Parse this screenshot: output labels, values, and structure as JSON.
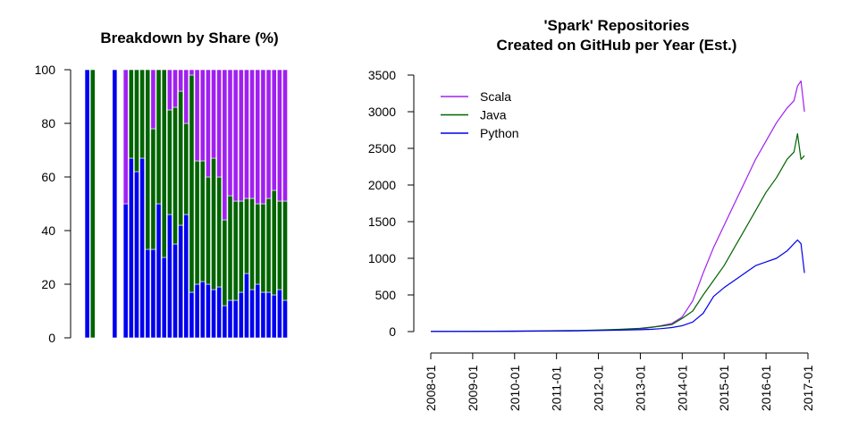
{
  "chart_data": [
    {
      "type": "bar",
      "stacked": true,
      "title": "Breakdown by Share (%)",
      "ylim": [
        0,
        100
      ],
      "yticks": [
        "0",
        "20",
        "40",
        "60",
        "80",
        "100"
      ],
      "colors": {
        "python": "#0000ee",
        "java": "#006400",
        "scala": "#a020f0"
      },
      "series": [
        {
          "name": "Python",
          "values": [
            100,
            0,
            null,
            0,
            null,
            100,
            null,
            50,
            67,
            62,
            67,
            33,
            33,
            50,
            30,
            46,
            35,
            42,
            46,
            17,
            20,
            21,
            20,
            18,
            19,
            12,
            14,
            14,
            17,
            24,
            18,
            20,
            17,
            17,
            16,
            18,
            14
          ]
        },
        {
          "name": "Java",
          "values": [
            0,
            100,
            null,
            0,
            null,
            0,
            null,
            0,
            33,
            38,
            33,
            67,
            45,
            50,
            70,
            39,
            51,
            50,
            34,
            81,
            46,
            45,
            40,
            49,
            41,
            32,
            39,
            37,
            34,
            28,
            34,
            30,
            33,
            35,
            39,
            33,
            37
          ]
        },
        {
          "name": "Scala",
          "values": [
            0,
            0,
            null,
            0,
            null,
            0,
            null,
            50,
            0,
            0,
            0,
            0,
            22,
            0,
            0,
            15,
            14,
            8,
            20,
            2,
            34,
            34,
            40,
            33,
            40,
            56,
            47,
            49,
            49,
            48,
            48,
            50,
            50,
            48,
            45,
            49,
            49
          ]
        }
      ]
    },
    {
      "type": "line",
      "title_lines": [
        "'Spark' Repositories",
        "Created on GitHub per Year (Est.)"
      ],
      "ylim": [
        0,
        3500
      ],
      "yticks": [
        "0",
        "500",
        "1000",
        "1500",
        "2000",
        "2500",
        "3000",
        "3500"
      ],
      "xticks": [
        "2008-01",
        "2009-01",
        "2010-01",
        "2011-01",
        "2012-01",
        "2013-01",
        "2014-01",
        "2015-01",
        "2016-01",
        "2017-01"
      ],
      "legend_position": "top-left",
      "x": [
        "2008-01",
        "2008-07",
        "2009-01",
        "2009-07",
        "2010-01",
        "2010-07",
        "2011-01",
        "2011-07",
        "2012-01",
        "2012-07",
        "2013-01",
        "2013-04",
        "2013-07",
        "2013-10",
        "2014-01",
        "2014-04",
        "2014-07",
        "2014-10",
        "2015-01",
        "2015-04",
        "2015-07",
        "2015-10",
        "2016-01",
        "2016-04",
        "2016-07",
        "2016-09",
        "2016-10",
        "2016-11",
        "2016-12"
      ],
      "series": [
        {
          "name": "Scala",
          "color": "#a020f0",
          "values": [
            2,
            3,
            4,
            5,
            6,
            8,
            10,
            12,
            18,
            25,
            35,
            55,
            80,
            110,
            200,
            420,
            800,
            1150,
            1450,
            1750,
            2050,
            2350,
            2600,
            2850,
            3050,
            3150,
            3350,
            3420,
            3000
          ]
        },
        {
          "name": "Java",
          "color": "#006400",
          "values": [
            2,
            3,
            4,
            5,
            6,
            8,
            12,
            15,
            22,
            30,
            45,
            60,
            75,
            95,
            180,
            280,
            500,
            700,
            900,
            1150,
            1400,
            1650,
            1900,
            2100,
            2350,
            2450,
            2700,
            2350,
            2400
          ]
        },
        {
          "name": "Python",
          "color": "#0000ee",
          "values": [
            1,
            2,
            3,
            4,
            5,
            6,
            8,
            10,
            15,
            20,
            25,
            30,
            40,
            55,
            80,
            130,
            250,
            480,
            600,
            700,
            800,
            900,
            950,
            1000,
            1100,
            1200,
            1250,
            1200,
            800
          ]
        }
      ]
    }
  ]
}
